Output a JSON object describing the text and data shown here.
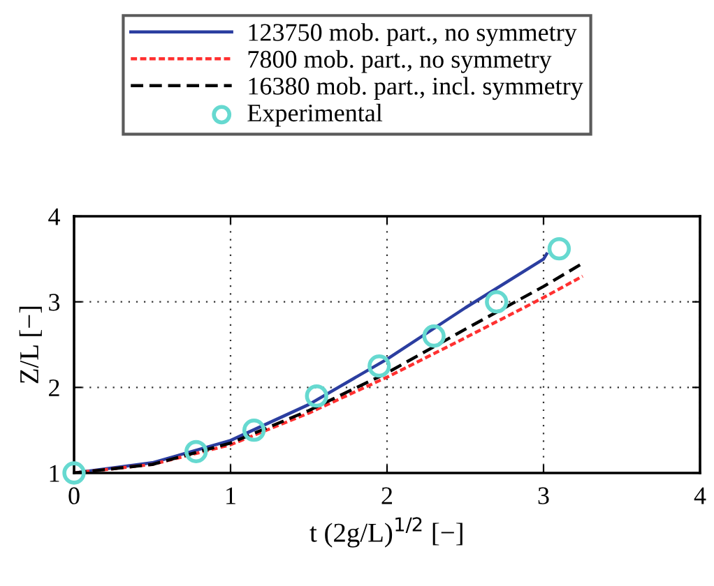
{
  "chart_data": {
    "type": "line",
    "xlabel": "t (2g/L)$^{1/2}$ [−]",
    "ylabel": "Z/L [−]",
    "xlim": [
      0,
      4
    ],
    "ylim": [
      1,
      4
    ],
    "xticks": [
      0,
      1,
      2,
      3,
      4
    ],
    "yticks": [
      1,
      2,
      3,
      4
    ],
    "grid": true,
    "legend": "top",
    "series": [
      {
        "name": "123750 mob. part., no symmetry",
        "color": "#2b3ea0",
        "line_style": "solid",
        "marker": "none",
        "x": [
          0,
          0.5,
          1,
          1.5,
          2,
          2.5,
          3,
          3.02
        ],
        "values": [
          1,
          1.12,
          1.38,
          1.8,
          2.33,
          2.93,
          3.5,
          3.56
        ]
      },
      {
        "name": "7800 mob. part., no symmetry",
        "color": "#ff3030",
        "line_style": "dotted",
        "marker": "none",
        "x": [
          0,
          0.5,
          1,
          1.5,
          2,
          2.5,
          3,
          3.25
        ],
        "values": [
          1,
          1.1,
          1.33,
          1.7,
          2.12,
          2.58,
          3.05,
          3.3
        ]
      },
      {
        "name": "16380 mob. part., incl. symmetry",
        "color": "#000000",
        "line_style": "dashed",
        "marker": "none",
        "x": [
          0,
          0.5,
          1,
          1.5,
          2,
          2.5,
          3,
          3.25
        ],
        "values": [
          1,
          1.1,
          1.35,
          1.73,
          2.17,
          2.68,
          3.18,
          3.45
        ]
      },
      {
        "name": "Experimental",
        "type": "scatter",
        "color": "#66d9d0",
        "marker": "circle",
        "x": [
          0,
          0.78,
          1.15,
          1.55,
          1.95,
          2.3,
          2.7,
          3.1
        ],
        "values": [
          1,
          1.25,
          1.5,
          1.9,
          2.25,
          2.6,
          3.0,
          3.62
        ]
      }
    ]
  }
}
